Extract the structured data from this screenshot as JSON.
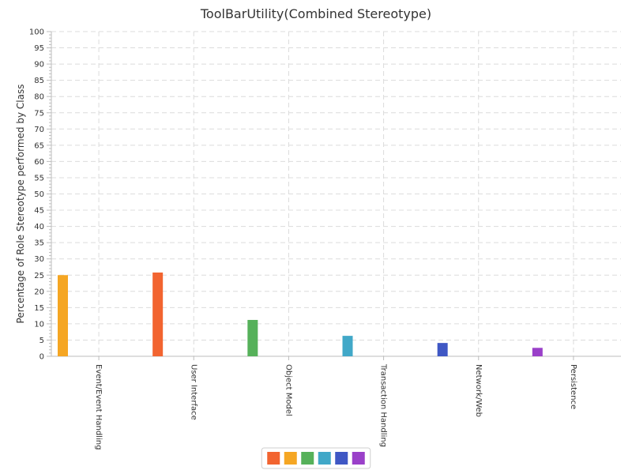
{
  "chart_data": {
    "type": "bar",
    "title": "ToolBarUtility(Combined Stereotype)",
    "xlabel": "",
    "ylabel": "Percentage of Role Stereotype performed by Class",
    "ylim": [
      0,
      100
    ],
    "y_ticks": [
      0,
      5,
      10,
      15,
      20,
      25,
      30,
      35,
      40,
      45,
      50,
      55,
      60,
      65,
      70,
      75,
      80,
      85,
      90,
      95,
      100
    ],
    "grid": true,
    "legend_position": "bottom-center",
    "categories": [
      "Event/Event Handling",
      "User Interface",
      "Object Model",
      "Transaction Handling",
      "Network/Web",
      "Persistence"
    ],
    "values": [
      25.0,
      25.8,
      11.2,
      6.3,
      4.1,
      2.6
    ],
    "colors": [
      "#f5a623",
      "#f26430",
      "#56b15a",
      "#41a8c8",
      "#3f57c4",
      "#9a40c9"
    ],
    "legend_swatches": [
      "#f26430",
      "#f5a623",
      "#56b15a",
      "#41a8c8",
      "#3f57c4",
      "#9a40c9"
    ]
  }
}
